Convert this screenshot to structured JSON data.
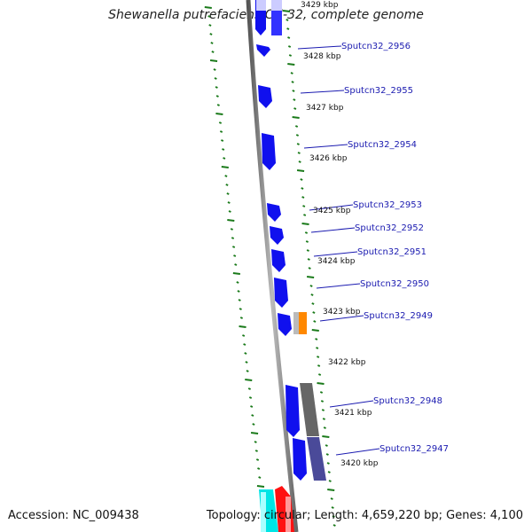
{
  "title": "Shewanella putrefaciens CN-32, complete genome",
  "footer": {
    "accession": "Accession: NC_009438",
    "summary": "Topology: circular; Length: 4,659,220 bp; Genes: 4,100"
  },
  "position_labels": [
    "3429 kbp",
    "3428 kbp",
    "3427 kbp",
    "3426 kbp",
    "3425 kbp",
    "3424 kbp",
    "3423 kbp",
    "3422 kbp",
    "3421 kbp",
    "3420 kbp"
  ],
  "genes": [
    "Sputcn32_2956",
    "Sputcn32_2955",
    "Sputcn32_2954",
    "Sputcn32_2953",
    "Sputcn32_2952",
    "Sputcn32_2951",
    "Sputcn32_2950",
    "Sputcn32_2949",
    "Sputcn32_2948",
    "Sputcn32_2947"
  ],
  "colors": {
    "gene": "#1010ee",
    "cog_dark": "#666666",
    "cog_purple": "#4a4a99",
    "orange": "#ff8800",
    "cyan": "#00e5e5",
    "red": "#ff1111",
    "ticks": "#1a7a1a",
    "backbone": "#888888",
    "label": "#1a1ab0"
  }
}
